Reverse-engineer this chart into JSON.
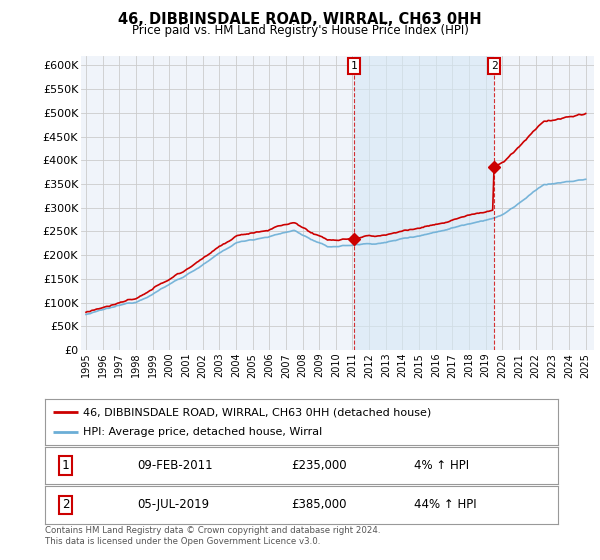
{
  "title": "46, DIBBINSDALE ROAD, WIRRAL, CH63 0HH",
  "subtitle": "Price paid vs. HM Land Registry's House Price Index (HPI)",
  "hpi_label": "HPI: Average price, detached house, Wirral",
  "property_label": "46, DIBBINSDALE ROAD, WIRRAL, CH63 0HH (detached house)",
  "annotation1_label": "1",
  "annotation1_date": "09-FEB-2011",
  "annotation1_price": 235000,
  "annotation1_pct": "4% ↑ HPI",
  "annotation2_label": "2",
  "annotation2_date": "05-JUL-2019",
  "annotation2_price": 385000,
  "annotation2_pct": "44% ↑ HPI",
  "footnote": "Contains HM Land Registry data © Crown copyright and database right 2024.\nThis data is licensed under the Open Government Licence v3.0.",
  "ylim": [
    0,
    620000
  ],
  "yticks": [
    0,
    50000,
    100000,
    150000,
    200000,
    250000,
    300000,
    350000,
    400000,
    450000,
    500000,
    550000,
    600000
  ],
  "hpi_color": "#6baed6",
  "hpi_fill_color": "#d6e8f5",
  "property_color": "#cc0000",
  "annotation_box_color": "#cc0000",
  "background_color": "#ffffff",
  "grid_color": "#cccccc",
  "plot_bg_color": "#f0f4fa"
}
